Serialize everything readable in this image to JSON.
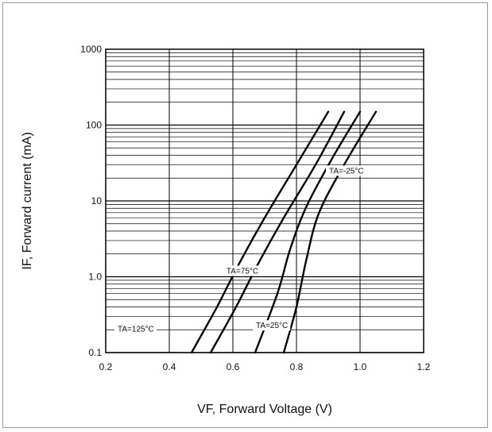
{
  "chart_data": {
    "type": "line",
    "xlabel": "VF, Forward Voltage (V)",
    "ylabel": "IF, Forward current (mA)",
    "xlim": [
      0.2,
      1.2
    ],
    "ylim": [
      0.1,
      1000
    ],
    "yscale": "log",
    "grid": true,
    "x_ticks": [
      "0.2",
      "0.4",
      "0.6",
      "0.8",
      "1.0",
      "1.2"
    ],
    "y_ticks": [
      "0.1",
      "1.0",
      "10",
      "100",
      "1000"
    ],
    "series": [
      {
        "name": "TA=125°C",
        "label": "TA=125°C",
        "x": [
          0.47,
          0.55,
          0.62,
          0.7,
          0.8,
          0.9
        ],
        "y": [
          0.1,
          0.4,
          1.5,
          6,
          30,
          150
        ]
      },
      {
        "name": "TA=75°C",
        "label": "TA=75°C",
        "x": [
          0.53,
          0.61,
          0.68,
          0.76,
          0.86,
          0.95
        ],
        "y": [
          0.1,
          0.4,
          1.5,
          6,
          30,
          150
        ]
      },
      {
        "name": "TA=25°C",
        "label": "TA=25°C",
        "x": [
          0.67,
          0.74,
          0.78,
          0.83,
          0.91,
          1.0
        ],
        "y": [
          0.1,
          0.6,
          2.3,
          8.2,
          35,
          150
        ]
      },
      {
        "name": "TA=-25°C",
        "label": "TA=-25°C",
        "x": [
          0.76,
          0.8,
          0.83,
          0.87,
          0.95,
          1.05
        ],
        "y": [
          0.1,
          0.4,
          1.6,
          6.8,
          30,
          150
        ]
      }
    ]
  }
}
